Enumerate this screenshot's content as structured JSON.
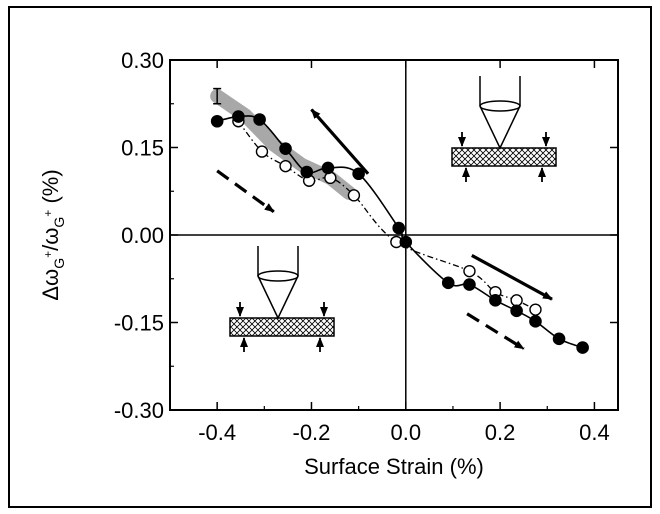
{
  "chart_data": {
    "type": "scatter",
    "title": "",
    "xlabel": "Surface Strain (%)",
    "ylabel": {
      "symbol": "Δω",
      "subscript": "G",
      "superscript": "+",
      "divider": "/",
      "symbol2": "ω",
      "subscript2": "G",
      "superscript2": "+",
      "unit": " (%)"
    },
    "xlim": [
      -0.5,
      0.45
    ],
    "ylim": [
      -0.3,
      0.3
    ],
    "xticks": [
      -0.4,
      -0.2,
      0.0,
      0.2,
      0.4
    ],
    "xtick_labels": [
      "-0.4",
      "-0.2",
      "0.0",
      "0.2",
      "0.4"
    ],
    "yticks": [
      -0.3,
      -0.15,
      0.0,
      0.15,
      0.3
    ],
    "ytick_labels": [
      "-0.30",
      "-0.15",
      "0.00",
      "0.15",
      "0.30"
    ],
    "grid": false,
    "series": [
      {
        "marker": "filled-circle",
        "line": "solid",
        "points": [
          [
            -0.4,
            0.195
          ],
          [
            -0.355,
            0.203
          ],
          [
            -0.31,
            0.198
          ],
          [
            -0.255,
            0.148
          ],
          [
            -0.21,
            0.108
          ],
          [
            -0.165,
            0.115
          ],
          [
            -0.1,
            0.105
          ],
          [
            -0.015,
            0.012
          ],
          [
            0.0,
            -0.012
          ],
          [
            0.09,
            -0.082
          ],
          [
            0.135,
            -0.085
          ],
          [
            0.19,
            -0.112
          ],
          [
            0.235,
            -0.13
          ],
          [
            0.275,
            -0.148
          ],
          [
            0.325,
            -0.178
          ],
          [
            0.375,
            -0.193
          ]
        ]
      },
      {
        "marker": "open-circle",
        "line": "dash-dot",
        "points": [
          [
            -0.355,
            0.195
          ],
          [
            -0.305,
            0.143
          ],
          [
            -0.255,
            0.118
          ],
          [
            -0.205,
            0.093
          ],
          [
            -0.16,
            0.098
          ],
          [
            -0.11,
            0.068
          ],
          [
            -0.02,
            -0.012
          ],
          [
            0.135,
            -0.062
          ],
          [
            0.19,
            -0.098
          ],
          [
            0.235,
            -0.112
          ],
          [
            0.275,
            -0.128
          ]
        ]
      }
    ],
    "band": {
      "color": "#a8a8a8",
      "points": [
        [
          -0.4,
          0.238
        ],
        [
          -0.34,
          0.205
        ],
        [
          -0.28,
          0.155
        ],
        [
          -0.22,
          0.12
        ],
        [
          -0.16,
          0.098
        ],
        [
          -0.12,
          0.072
        ]
      ]
    },
    "error_bar": {
      "x": -0.4,
      "y": 0.238,
      "err": 0.013
    },
    "arrows": [
      {
        "style": "solid",
        "from": [
          -0.08,
          0.105
        ],
        "to": [
          -0.2,
          0.215
        ]
      },
      {
        "style": "dashed",
        "from": [
          -0.4,
          0.11
        ],
        "to": [
          -0.28,
          0.04
        ]
      },
      {
        "style": "solid",
        "from": [
          0.14,
          -0.035
        ],
        "to": [
          0.31,
          -0.11
        ]
      },
      {
        "style": "dashed",
        "from": [
          0.13,
          -0.135
        ],
        "to": [
          0.25,
          -0.195
        ]
      }
    ]
  }
}
